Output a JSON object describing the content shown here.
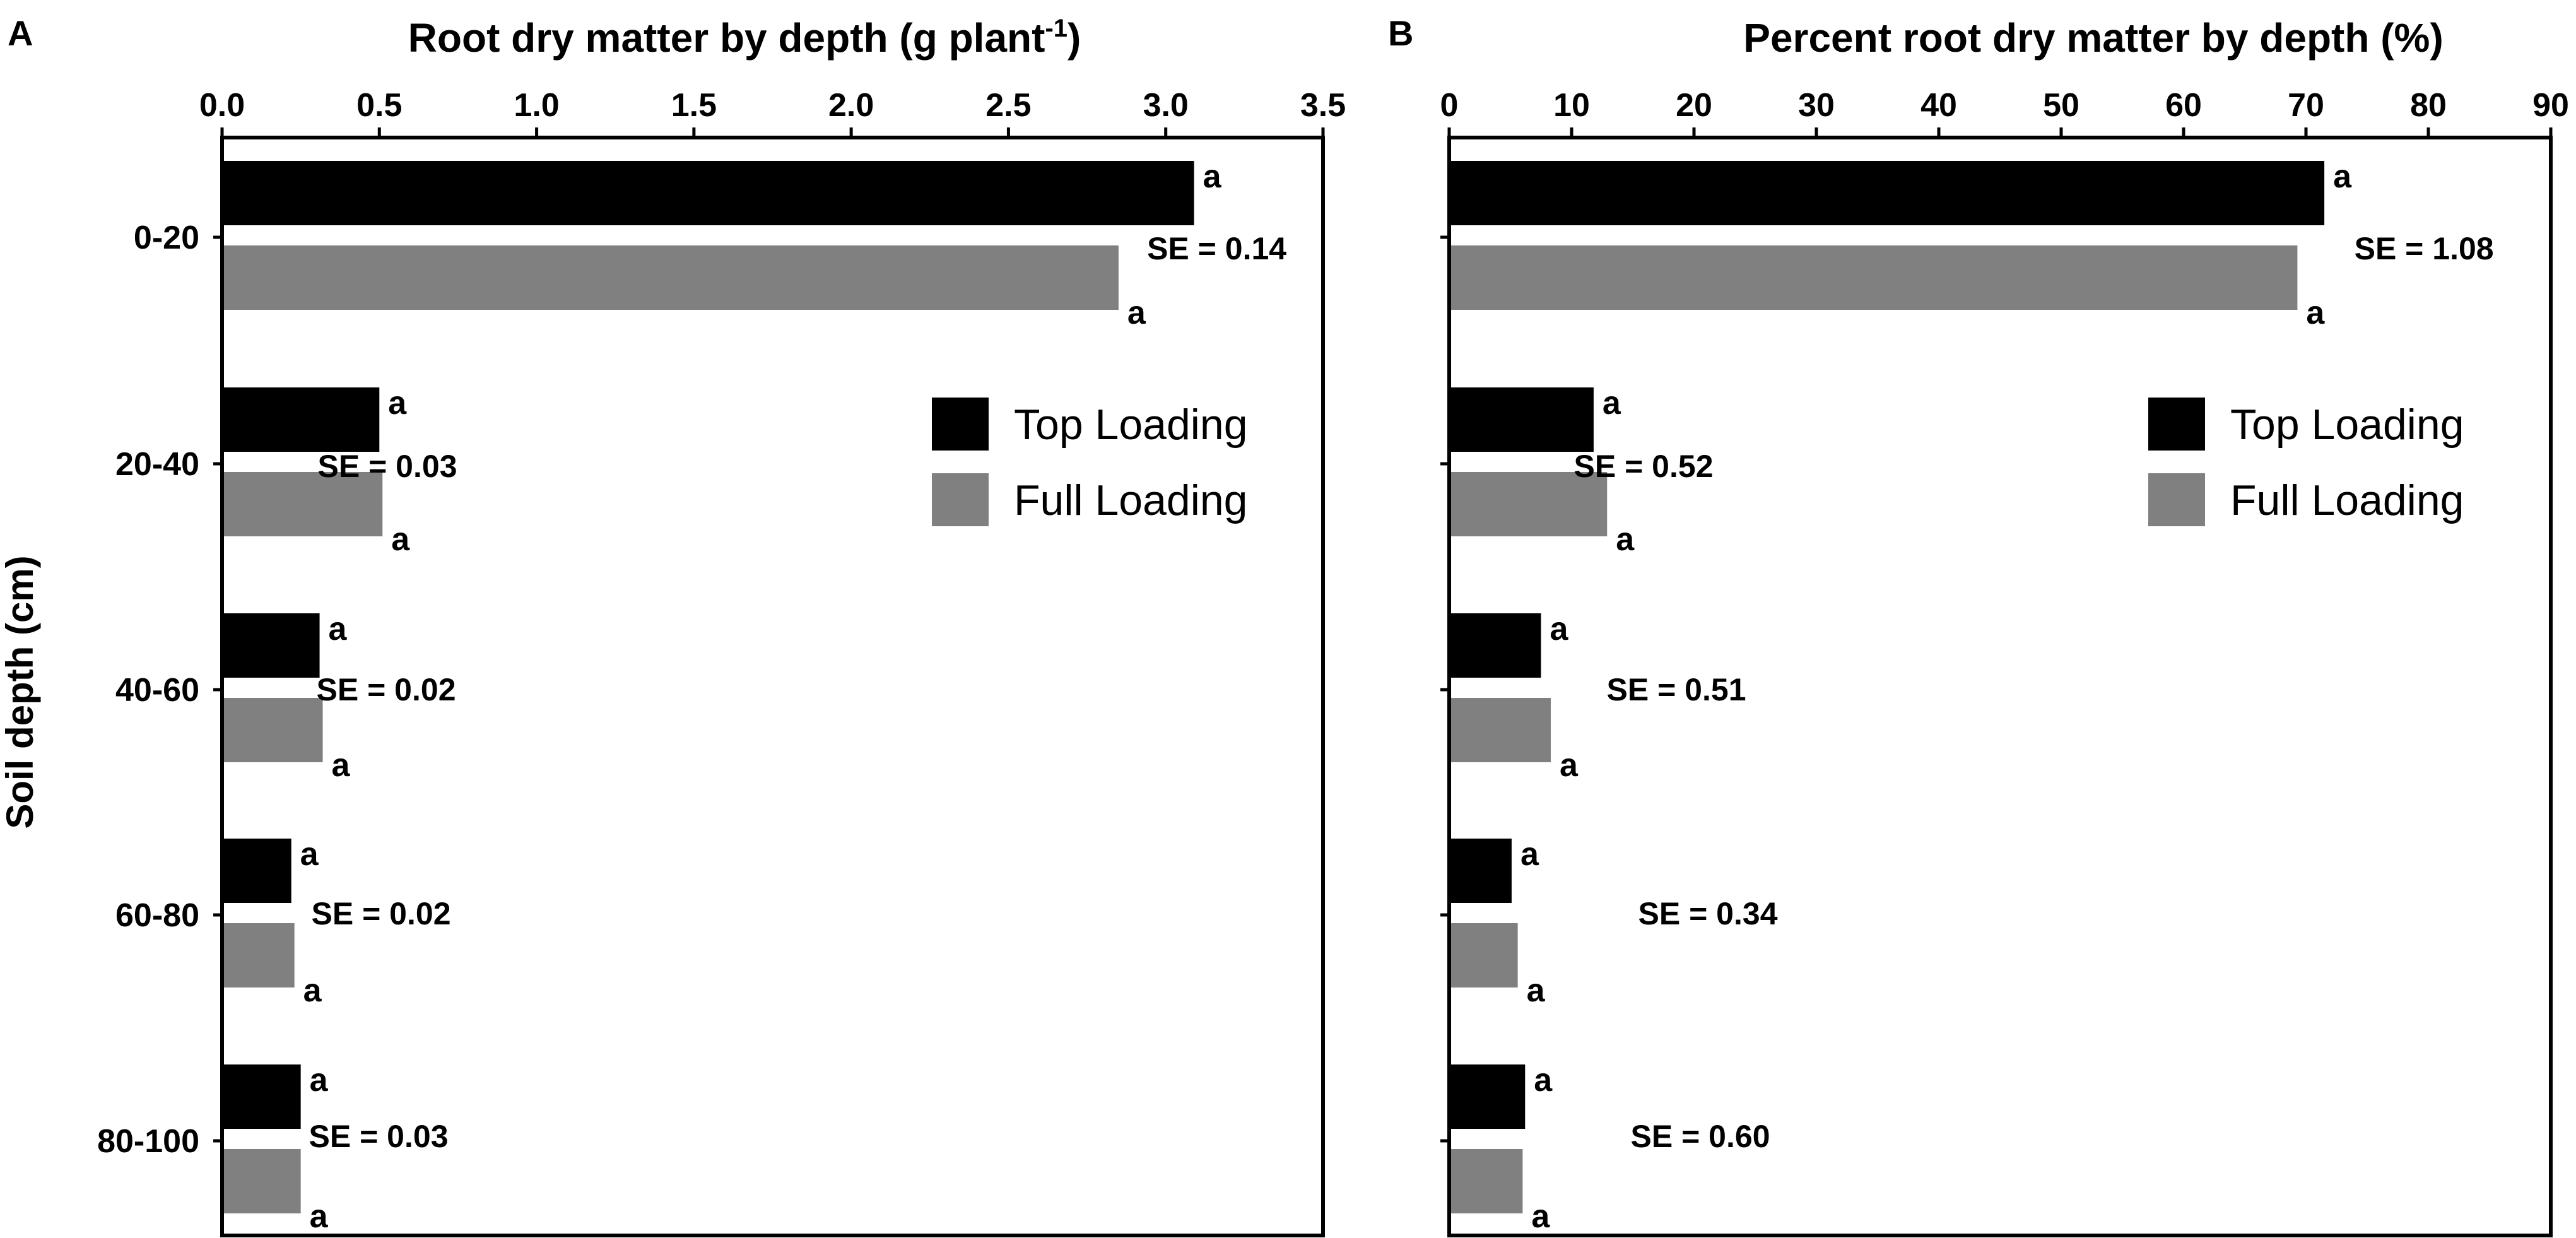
{
  "figure": {
    "y_axis_title": "Soil depth (cm)",
    "colors": {
      "top_loading": "#000000",
      "full_loading": "#808080",
      "frame": "#000000",
      "background": "#ffffff"
    }
  },
  "chart_data": [
    {
      "panel": "A",
      "type": "bar",
      "orientation": "horizontal",
      "title": "Root dry matter by depth (g plant",
      "title_superscript": "-1",
      "title_suffix": ")",
      "xlabel": "",
      "ylabel": "Soil depth (cm)",
      "xlim": [
        0,
        3.5
      ],
      "xticks": [
        "0.0",
        "0.5",
        "1.0",
        "1.5",
        "2.0",
        "2.5",
        "3.0",
        "3.5"
      ],
      "categories": [
        "0-20",
        "20-40",
        "40-60",
        "60-80",
        "80-100"
      ],
      "series": [
        {
          "name": "Top Loading",
          "color": "#000000",
          "values": [
            3.09,
            0.5,
            0.31,
            0.22,
            0.25
          ],
          "significance": [
            "a",
            "a",
            "a",
            "a",
            "a"
          ]
        },
        {
          "name": "Full Loading",
          "color": "#808080",
          "values": [
            2.85,
            0.51,
            0.32,
            0.23,
            0.25
          ],
          "significance": [
            "a",
            "a",
            "a",
            "a",
            "a"
          ]
        }
      ],
      "se_labels": [
        "SE = 0.14",
        "SE = 0.03",
        "SE = 0.02",
        "SE = 0.02",
        "SE = 0.03"
      ],
      "legend": {
        "position": "right",
        "entries": [
          "Top Loading",
          "Full Loading"
        ]
      },
      "grid": false
    },
    {
      "panel": "B",
      "type": "bar",
      "orientation": "horizontal",
      "title": "Percent root dry matter by depth (%)",
      "title_superscript": "",
      "title_suffix": "",
      "xlabel": "",
      "ylabel": "",
      "xlim": [
        0,
        90
      ],
      "xticks": [
        "0",
        "10",
        "20",
        "30",
        "40",
        "50",
        "60",
        "70",
        "80",
        "90"
      ],
      "categories": [
        "0-20",
        "20-40",
        "40-60",
        "60-80",
        "80-100"
      ],
      "series": [
        {
          "name": "Top Loading",
          "color": "#000000",
          "values": [
            71.5,
            11.8,
            7.5,
            5.1,
            6.2
          ],
          "significance": [
            "a",
            "a",
            "a",
            "a",
            "a"
          ]
        },
        {
          "name": "Full Loading",
          "color": "#808080",
          "values": [
            69.3,
            12.9,
            8.3,
            5.6,
            6.0
          ],
          "significance": [
            "a",
            "a",
            "a",
            "a",
            "a"
          ]
        }
      ],
      "se_labels": [
        "SE = 1.08",
        "SE = 0.52",
        "SE = 0.51",
        "SE = 0.34",
        "SE = 0.60"
      ],
      "legend": {
        "position": "right",
        "entries": [
          "Top Loading",
          "Full Loading"
        ]
      },
      "grid": false
    }
  ]
}
